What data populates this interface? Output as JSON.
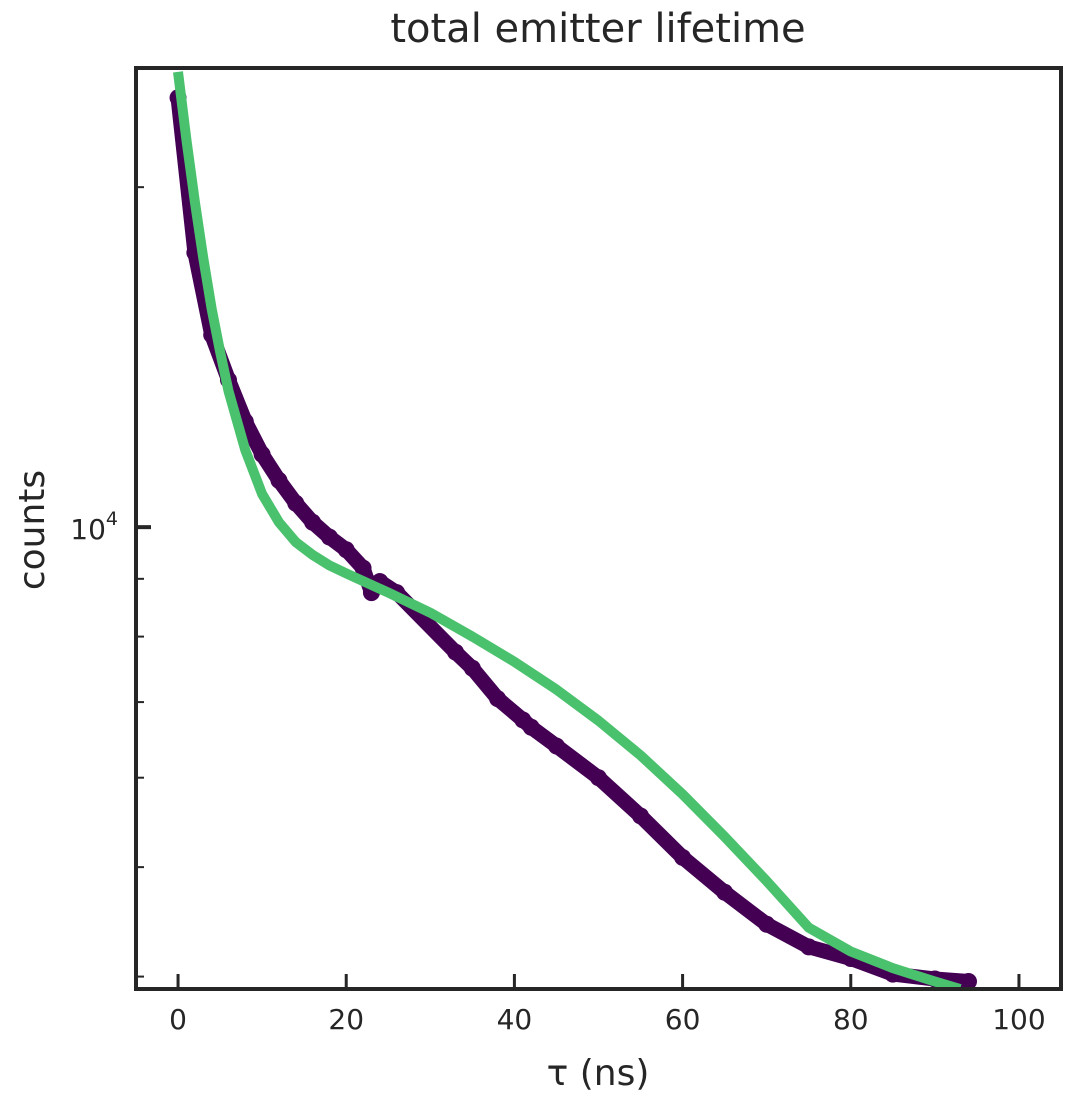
{
  "chart_data": {
    "type": "scatter",
    "title": "total emitter lifetime",
    "xlabel": "τ (ns)",
    "ylabel": "counts",
    "xlim": [
      -5,
      105
    ],
    "ylim": [
      3900,
      25500
    ],
    "yscale": "log",
    "grid": false,
    "xticks": [
      0,
      20,
      40,
      60,
      80,
      100
    ],
    "ytick_major": {
      "base": "10",
      "exponent": "4",
      "value": 10000
    },
    "colors": {
      "data": "#440154",
      "fit": "#4ac16d",
      "axes": "#262626"
    },
    "series": [
      {
        "kind": "points",
        "x": [
          0,
          2,
          4,
          6,
          8,
          10,
          12,
          14,
          16,
          18,
          20,
          22,
          23,
          24,
          26,
          33,
          35,
          38,
          41,
          42,
          45,
          50,
          55,
          60,
          65,
          70,
          75,
          80,
          85,
          90,
          94
        ],
        "y": [
          24000,
          17500,
          14800,
          13500,
          12400,
          11600,
          11000,
          10500,
          10100,
          9800,
          9550,
          9200,
          8750,
          8950,
          8750,
          7750,
          7500,
          7050,
          6750,
          6650,
          6400,
          6000,
          5550,
          5100,
          4750,
          4450,
          4250,
          4150,
          4020,
          3980,
          3960
        ]
      },
      {
        "kind": "fit",
        "x": [
          0,
          1,
          2,
          3,
          4,
          5,
          6,
          8,
          10,
          12,
          14,
          16,
          18,
          20,
          25,
          30,
          35,
          40,
          45,
          50,
          55,
          60,
          65,
          70,
          75,
          80,
          85,
          90,
          93
        ],
        "y": [
          25300,
          22000,
          19400,
          17300,
          15600,
          14300,
          13200,
          11700,
          10700,
          10100,
          9700,
          9450,
          9250,
          9100,
          8750,
          8400,
          8000,
          7600,
          7180,
          6740,
          6280,
          5800,
          5320,
          4860,
          4420,
          4210,
          4070,
          3960,
          3900
        ]
      }
    ]
  }
}
